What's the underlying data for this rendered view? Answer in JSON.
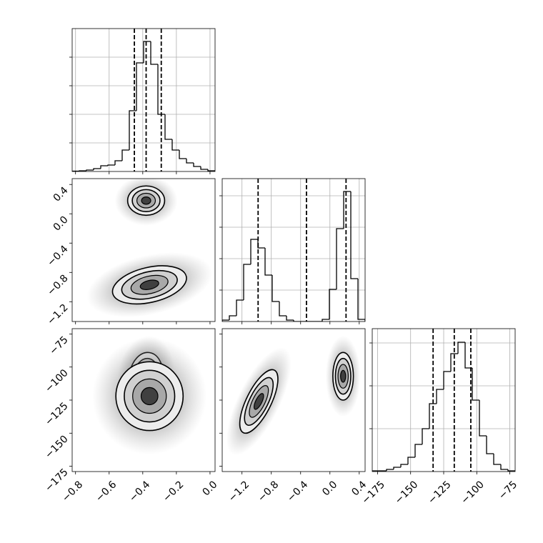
{
  "chart_data": [
    {
      "type": "histogram",
      "bins": [
        -0.82,
        -0.7775,
        -0.735,
        -0.6925,
        -0.65,
        -0.6075,
        -0.565,
        -0.5225,
        -0.48,
        -0.4375,
        -0.395,
        -0.3525,
        -0.31,
        -0.2675,
        -0.225,
        -0.1825,
        -0.14,
        -0.0975,
        -0.055,
        -0.0125,
        0.03
      ],
      "values": [
        5,
        10,
        20,
        40,
        80,
        90,
        150,
        300,
        850,
        1520,
        1820,
        1500,
        800,
        450,
        300,
        180,
        120,
        70,
        30,
        10
      ],
      "quantiles": [
        -0.45,
        -0.38,
        -0.29
      ],
      "xlim": [
        -0.82,
        0.03
      ],
      "xticks": [
        {
          "value": -0.8,
          "label": "−0.8"
        },
        {
          "value": -0.6,
          "label": "−0.6"
        },
        {
          "value": -0.4,
          "label": "−0.4"
        },
        {
          "value": -0.2,
          "label": "−0.2"
        },
        {
          "value": 0,
          "label": "0.0"
        }
      ],
      "ylim": [
        0,
        2000
      ],
      "yticks": [
        400,
        800,
        1200,
        1600
      ],
      "grid": true,
      "xlabels": false,
      "ylabels": false
    },
    {
      "type": "contour",
      "xlim": [
        -0.82,
        0.03
      ],
      "xticks": [
        {
          "value": -0.8,
          "label": "−0.8"
        },
        {
          "value": -0.6,
          "label": "−0.6"
        },
        {
          "value": -0.4,
          "label": "−0.4"
        },
        {
          "value": -0.2,
          "label": "−0.2"
        },
        {
          "value": 0,
          "label": "0.0"
        }
      ],
      "ylim": [
        -1.47,
        0.48
      ],
      "yticks": [
        {
          "value": -1.2,
          "label": "−1.2"
        },
        {
          "value": -0.8,
          "label": "−0.8"
        },
        {
          "value": -0.4,
          "label": "−0.4"
        },
        {
          "value": 0,
          "label": "0.0"
        },
        0.4
      ],
      "clusters": [
        {
          "x": -0.38,
          "y": 0.18,
          "sx": 0.055,
          "sy": 0.1,
          "corr": 0
        },
        {
          "x": -0.36,
          "y": -0.97,
          "sx": 0.11,
          "sy": 0.13,
          "corr": 0.35
        }
      ],
      "grid": false,
      "xlabels": false,
      "ylabels": true
    },
    {
      "type": "histogram",
      "bins": [
        -1.47,
        -1.3725,
        -1.275,
        -1.1775,
        -1.08,
        -0.9825,
        -0.885,
        -0.7875,
        -0.69,
        -0.5925,
        -0.495,
        -0.3975,
        -0.3,
        -0.2025,
        -0.105,
        -0.0075,
        0.09,
        0.1875,
        0.285,
        0.3825,
        0.48
      ],
      "values": [
        20,
        80,
        300,
        800,
        1150,
        1030,
        650,
        280,
        80,
        20,
        0,
        0,
        0,
        0,
        30,
        450,
        1300,
        1820,
        600,
        30
      ],
      "quantiles": [
        -0.98,
        -0.32,
        0.22
      ],
      "xlim": [
        -1.47,
        0.48
      ],
      "xticks": [
        {
          "value": -1.2,
          "label": "−1.2"
        },
        {
          "value": -0.8,
          "label": "−0.8"
        },
        {
          "value": -0.4,
          "label": "−0.4"
        },
        {
          "value": 0,
          "label": "0.0"
        },
        0.4
      ],
      "ylim": [
        0,
        2000
      ],
      "yticks": [
        440,
        880,
        1320,
        1760
      ],
      "grid": true,
      "xlabels": false,
      "ylabels": false
    },
    {
      "type": "contour",
      "xlim": [
        -0.82,
        0.03
      ],
      "xticks": [
        {
          "value": -0.8,
          "label": "−0.8"
        },
        {
          "value": -0.6,
          "label": "−0.6"
        },
        {
          "value": -0.4,
          "label": "−0.4"
        },
        {
          "value": -0.2,
          "label": "−0.2"
        },
        {
          "value": 0,
          "label": "0.0"
        }
      ],
      "ylim": [
        -179,
        -71
      ],
      "yticks": [
        {
          "value": -175,
          "label": "−175"
        },
        {
          "value": -150,
          "label": "−150"
        },
        {
          "value": -125,
          "label": "−125"
        },
        {
          "value": -100,
          "label": "−100"
        },
        {
          "value": -75,
          "label": "−75"
        }
      ],
      "clusters": [
        {
          "x": -0.38,
          "y": -107,
          "sx": 0.05,
          "sy": 9,
          "corr": 0.1
        },
        {
          "x": -0.36,
          "y": -122,
          "sx": 0.1,
          "sy": 13,
          "corr": 0
        }
      ],
      "grid": false,
      "xlabels": true,
      "ylabels": true
    },
    {
      "type": "contour",
      "xlim": [
        -1.47,
        0.48
      ],
      "xticks": [
        {
          "value": -1.2,
          "label": "−1.2"
        },
        {
          "value": -0.8,
          "label": "−0.8"
        },
        {
          "value": -0.4,
          "label": "−0.4"
        },
        {
          "value": 0,
          "label": "0.0"
        },
        0.4
      ],
      "ylim": [
        -179,
        -71
      ],
      "yticks": [
        {
          "value": -175,
          "label": "−175"
        },
        {
          "value": -150,
          "label": "−150"
        },
        {
          "value": -125,
          "label": "−125"
        },
        {
          "value": -100,
          "label": "−100"
        },
        {
          "value": -75,
          "label": "−75"
        }
      ],
      "clusters": [
        {
          "x": 0.18,
          "y": -107,
          "sx": 0.07,
          "sy": 9,
          "corr": 0
        },
        {
          "x": -0.97,
          "y": -126,
          "sx": 0.13,
          "sy": 12,
          "corr": 0.7
        }
      ],
      "grid": false,
      "xlabels": true,
      "ylabels": false
    },
    {
      "type": "histogram",
      "bins": [
        -179,
        -173.6,
        -168.2,
        -162.8,
        -157.4,
        -152,
        -146.6,
        -141.2,
        -135.8,
        -130.4,
        -125,
        -119.6,
        -114.2,
        -108.8,
        -103.4,
        -98,
        -92.6,
        -87.2,
        -81.8,
        -76.4,
        -71
      ],
      "values": [
        10,
        10,
        30,
        60,
        100,
        200,
        380,
        600,
        950,
        1150,
        1400,
        1650,
        1810,
        1450,
        1000,
        500,
        250,
        100,
        30,
        10
      ],
      "quantiles": [
        -133,
        -117,
        -104.5
      ],
      "xlim": [
        -179,
        -71
      ],
      "xticks": [
        {
          "value": -175,
          "label": "−175"
        },
        {
          "value": -150,
          "label": "−150"
        },
        {
          "value": -125,
          "label": "−125"
        },
        {
          "value": -100,
          "label": "−100"
        },
        {
          "value": -75,
          "label": "−75"
        }
      ],
      "ylim": [
        0,
        2000
      ],
      "yticks": [
        600,
        1200,
        1800
      ],
      "grid": true,
      "xlabels": true,
      "ylabels": false
    }
  ]
}
